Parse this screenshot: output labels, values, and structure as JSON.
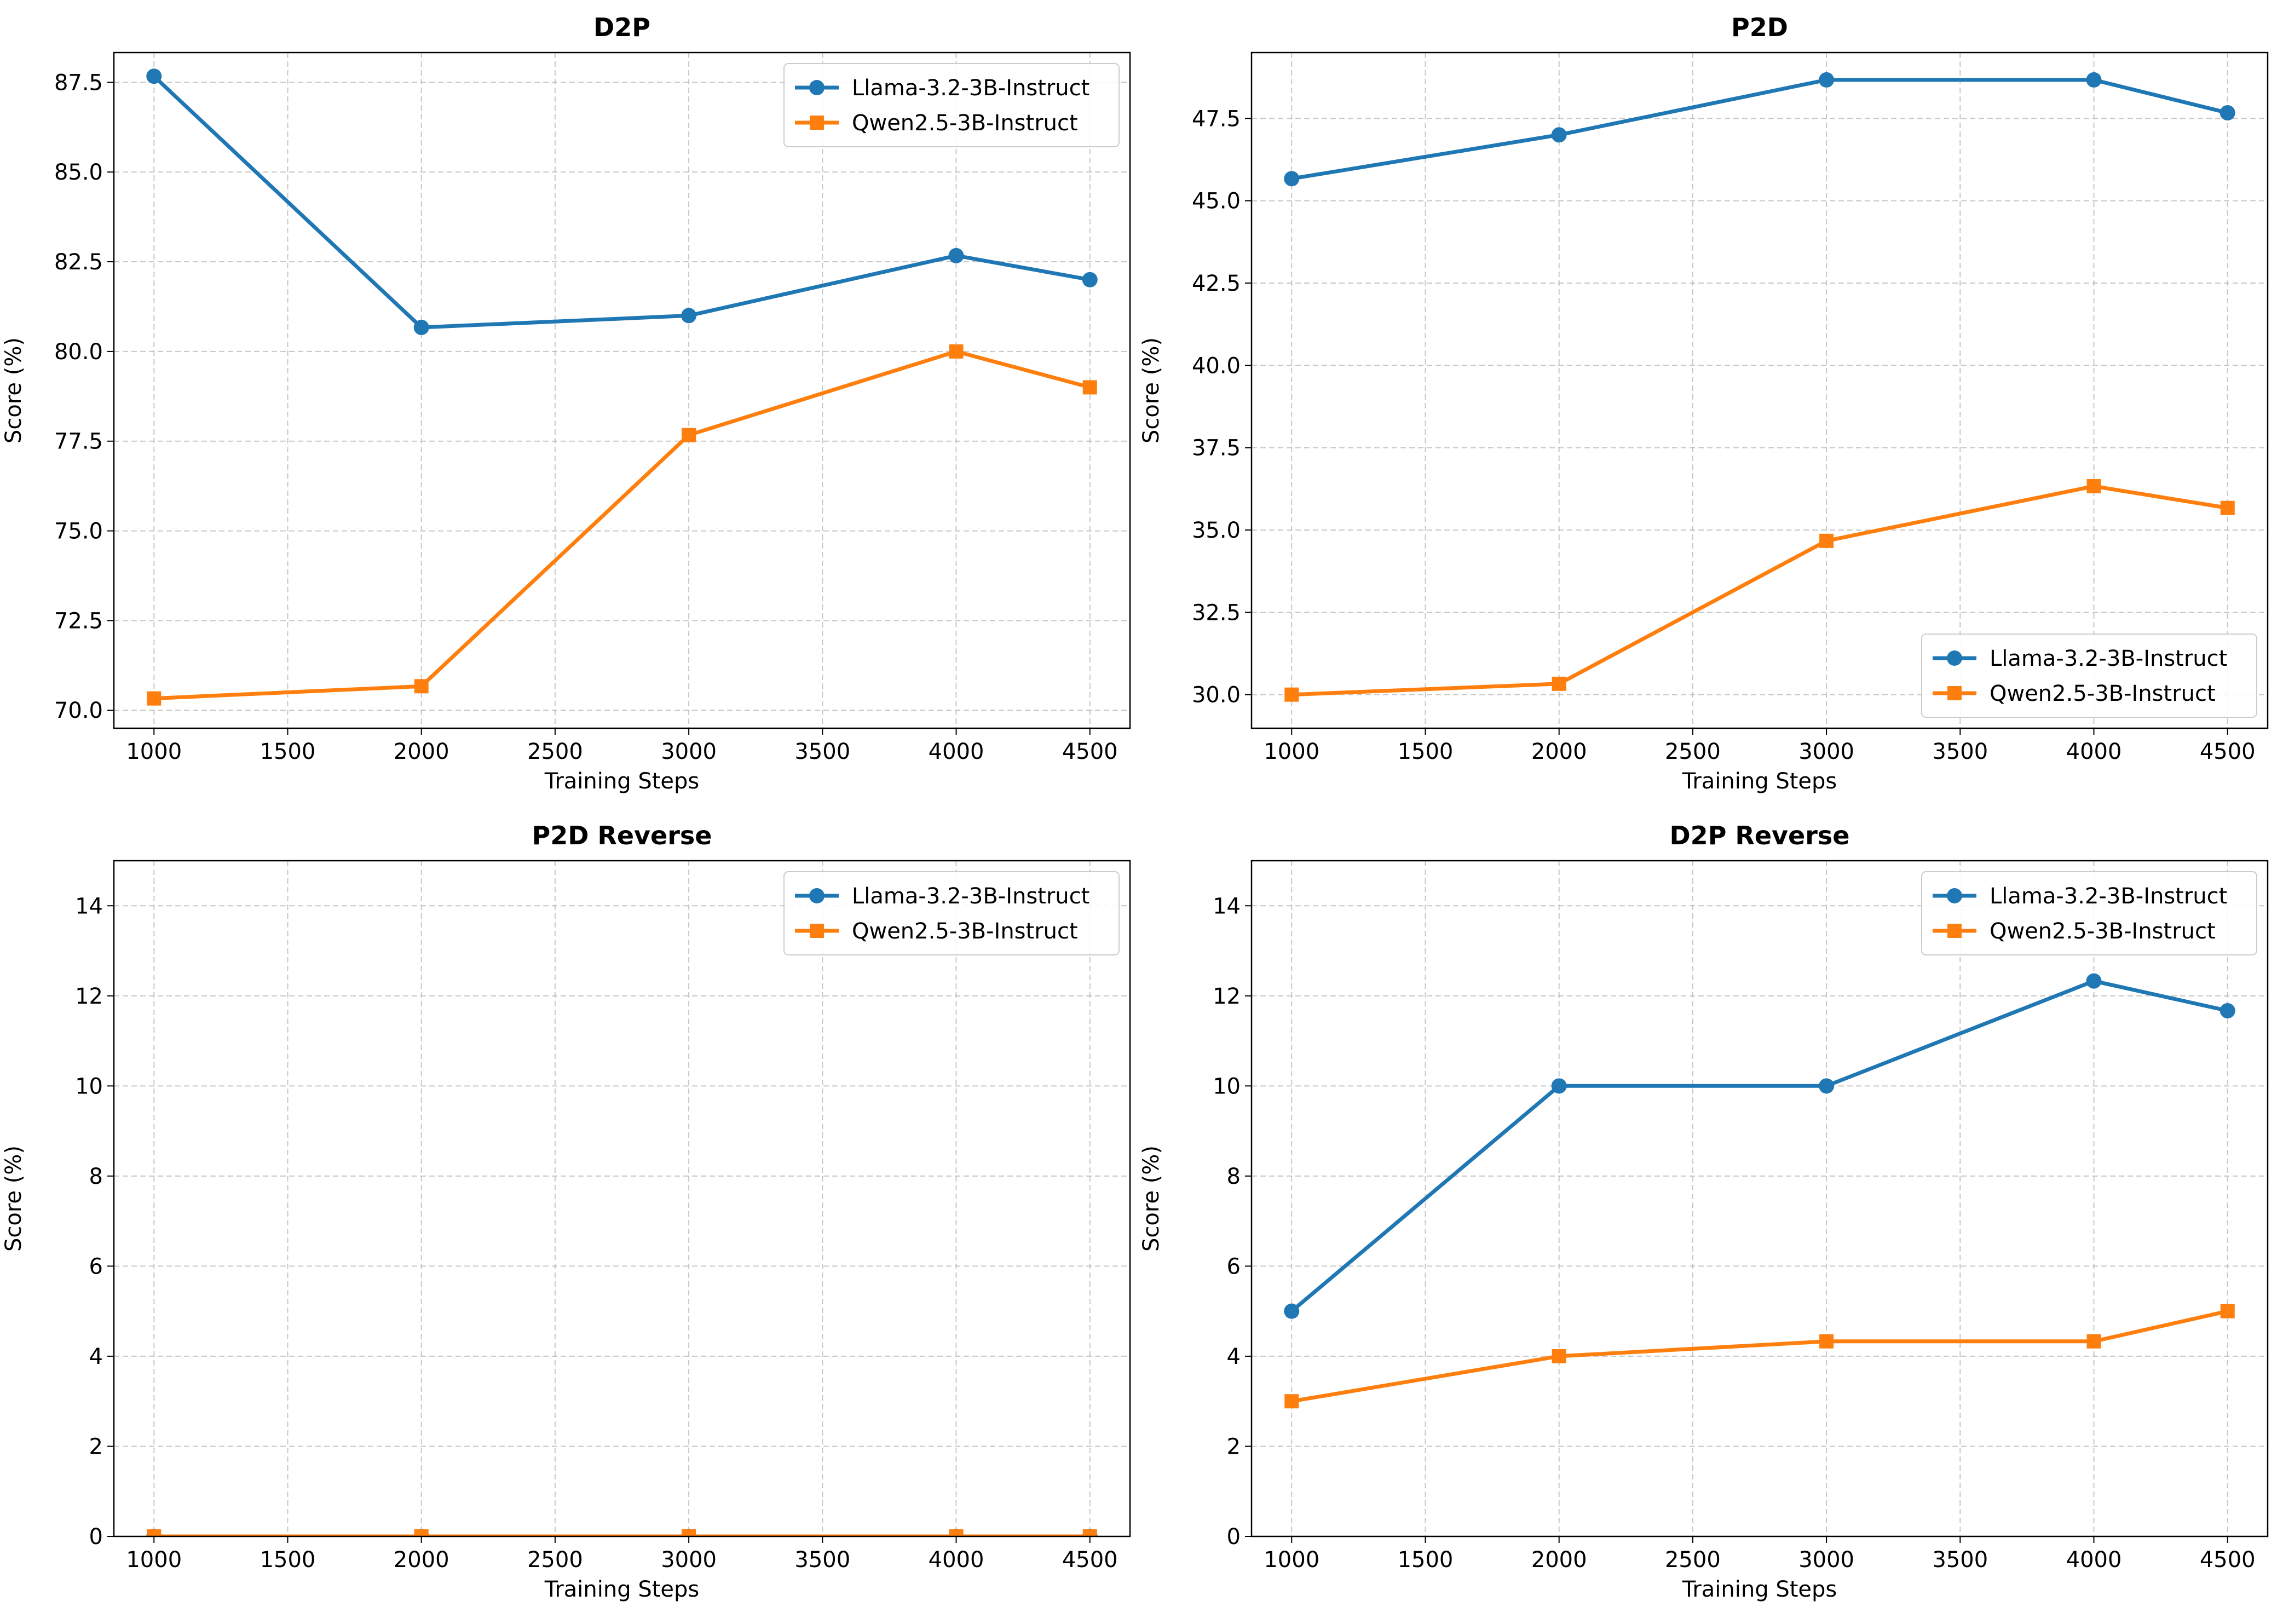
{
  "colors": {
    "series_1": "#1f77b4",
    "series_2": "#ff7f0e",
    "grid": "#b0b0b0",
    "axes": "#000000"
  },
  "chart_data": [
    {
      "type": "line",
      "title": "D2P",
      "xlabel": "Training Steps",
      "ylabel": "Score (%)",
      "x": [
        1000,
        2000,
        3000,
        4000,
        4500
      ],
      "xlim": [
        850,
        4650
      ],
      "ylim": [
        69.5,
        88.33
      ],
      "xticks": [
        1000,
        1500,
        2000,
        2500,
        3000,
        3500,
        4000,
        4500
      ],
      "yticks": [
        70.0,
        72.5,
        75.0,
        77.5,
        80.0,
        82.5,
        85.0,
        87.5
      ],
      "ytick_format": "0.0",
      "grid": true,
      "legend_position": "top-right",
      "series": [
        {
          "name": "Llama-3.2-3B-Instruct",
          "marker": "circle",
          "values": [
            87.67,
            80.67,
            81.0,
            82.67,
            82.0
          ]
        },
        {
          "name": "Qwen2.5-3B-Instruct",
          "marker": "square",
          "values": [
            70.33,
            70.67,
            77.67,
            80.0,
            79.0
          ]
        }
      ]
    },
    {
      "type": "line",
      "title": "P2D",
      "xlabel": "Training Steps",
      "ylabel": "Score (%)",
      "x": [
        1000,
        2000,
        3000,
        4000,
        4500
      ],
      "xlim": [
        850,
        4650
      ],
      "ylim": [
        28.98,
        49.5
      ],
      "xticks": [
        1000,
        1500,
        2000,
        2500,
        3000,
        3500,
        4000,
        4500
      ],
      "yticks": [
        30.0,
        32.5,
        35.0,
        37.5,
        40.0,
        42.5,
        45.0,
        47.5
      ],
      "ytick_format": "0.0",
      "grid": true,
      "legend_position": "bottom-right",
      "series": [
        {
          "name": "Llama-3.2-3B-Instruct",
          "marker": "circle",
          "values": [
            45.67,
            47.0,
            48.67,
            48.67,
            47.67
          ]
        },
        {
          "name": "Qwen2.5-3B-Instruct",
          "marker": "square",
          "values": [
            30.0,
            30.33,
            34.67,
            36.33,
            35.67
          ]
        }
      ]
    },
    {
      "type": "line",
      "title": "P2D Reverse",
      "xlabel": "Training Steps",
      "ylabel": "Score (%)",
      "x": [
        1000,
        2000,
        3000,
        4000,
        4500
      ],
      "xlim": [
        850,
        4650
      ],
      "ylim": [
        0,
        15
      ],
      "xticks": [
        1000,
        1500,
        2000,
        2500,
        3000,
        3500,
        4000,
        4500
      ],
      "yticks": [
        0,
        2,
        4,
        6,
        8,
        10,
        12,
        14
      ],
      "ytick_format": "0",
      "grid": true,
      "legend_position": "top-right",
      "series": [
        {
          "name": "Llama-3.2-3B-Instruct",
          "marker": "circle",
          "values": [
            0,
            0,
            0,
            0,
            0
          ]
        },
        {
          "name": "Qwen2.5-3B-Instruct",
          "marker": "square",
          "values": [
            0,
            0,
            0,
            0,
            0
          ]
        }
      ]
    },
    {
      "type": "line",
      "title": "D2P Reverse",
      "xlabel": "Training Steps",
      "ylabel": "Score (%)",
      "x": [
        1000,
        2000,
        3000,
        4000,
        4500
      ],
      "xlim": [
        850,
        4650
      ],
      "ylim": [
        0,
        15
      ],
      "xticks": [
        1000,
        1500,
        2000,
        2500,
        3000,
        3500,
        4000,
        4500
      ],
      "yticks": [
        0,
        2,
        4,
        6,
        8,
        10,
        12,
        14
      ],
      "ytick_format": "0",
      "grid": true,
      "legend_position": "top-right",
      "series": [
        {
          "name": "Llama-3.2-3B-Instruct",
          "marker": "circle",
          "values": [
            5.0,
            10.0,
            10.0,
            12.33,
            11.67
          ]
        },
        {
          "name": "Qwen2.5-3B-Instruct",
          "marker": "square",
          "values": [
            3.0,
            4.0,
            4.33,
            4.33,
            5.0
          ]
        }
      ]
    }
  ]
}
